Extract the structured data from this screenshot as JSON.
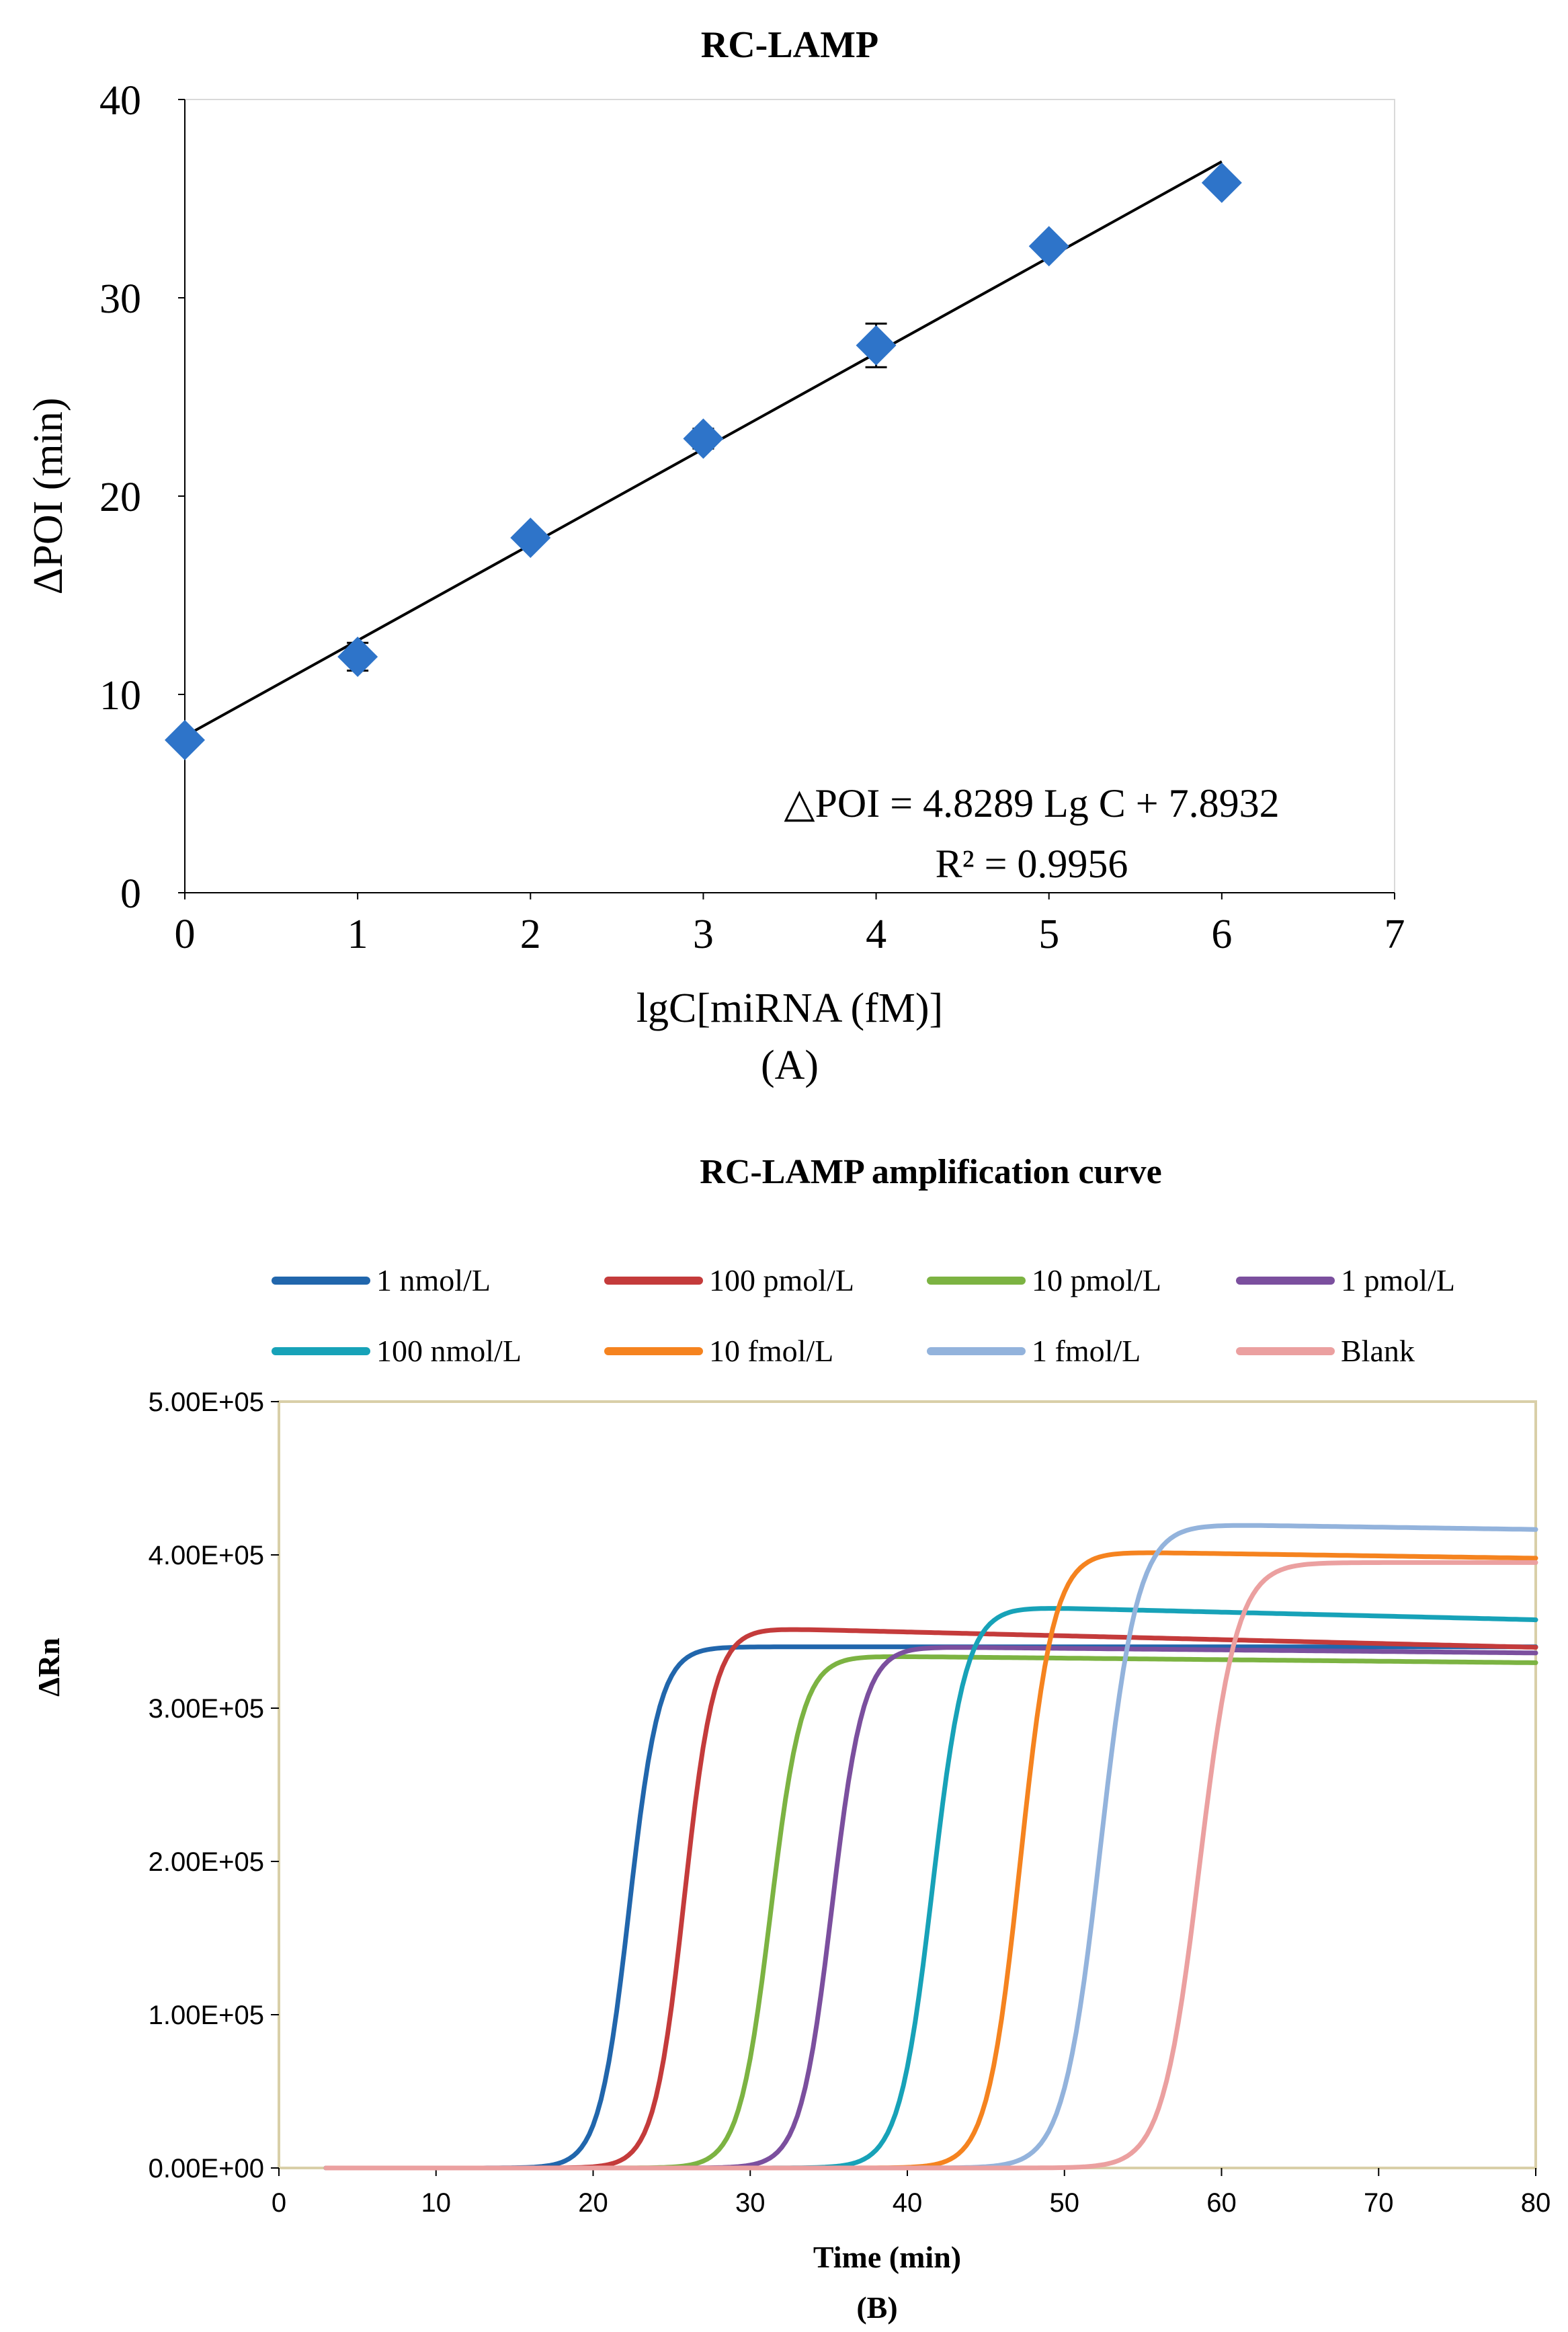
{
  "chart_data": [
    {
      "panel": "A",
      "type": "scatter",
      "title": "RC-LAMP",
      "xlabel": "lgC[miRNA (fM)]",
      "ylabel": "ΔPOI (min)",
      "caption": "(A)",
      "xlim": [
        0,
        7
      ],
      "ylim": [
        0,
        40
      ],
      "xticks": [
        0,
        1,
        2,
        3,
        4,
        5,
        6,
        7
      ],
      "yticks": [
        0,
        10,
        20,
        30,
        40
      ],
      "grid": false,
      "marker_color": "#2E74C9",
      "points": [
        {
          "x": 0,
          "y": 7.7,
          "err": 0.3
        },
        {
          "x": 1,
          "y": 11.9,
          "err": 0.7
        },
        {
          "x": 2,
          "y": 17.9,
          "err": 0.4
        },
        {
          "x": 3,
          "y": 22.9,
          "err": 0.5
        },
        {
          "x": 4,
          "y": 27.6,
          "err": 1.1
        },
        {
          "x": 5,
          "y": 32.6,
          "err": 0.4
        },
        {
          "x": 6,
          "y": 35.8,
          "err": 0.3
        }
      ],
      "fit": {
        "slope": 4.8289,
        "intercept": 7.8932,
        "x_range": [
          0,
          6
        ]
      },
      "equation": "△POI = 4.8289 Lg C + 7.8932",
      "r_squared": "R² = 0.9956"
    },
    {
      "panel": "B",
      "type": "line",
      "title": "RC-LAMP  amplification  curve",
      "xlabel": "Time (min)",
      "ylabel": "ΔRn",
      "caption": "(B)",
      "xlim": [
        0,
        80
      ],
      "ylim": [
        0,
        500000
      ],
      "xticks": [
        0,
        10,
        20,
        30,
        40,
        50,
        60,
        70,
        80
      ],
      "yticks": [
        0,
        100000,
        200000,
        300000,
        400000,
        500000
      ],
      "ytick_labels": [
        "0.00E+00",
        "1.00E+05",
        "2.00E+05",
        "3.00E+05",
        "4.00E+05",
        "5.00E+05"
      ],
      "legend_position": "top",
      "grid": false,
      "frame_color": "#D9CFA8",
      "series": [
        {
          "name": "1 nmol/L",
          "color": "#2166AC",
          "midpoint": 22.3,
          "steep": 1.05,
          "plateau": 340000,
          "drift": 0
        },
        {
          "name": "100 pmol/L",
          "color": "#C43B3B",
          "midpoint": 25.8,
          "steep": 1.05,
          "plateau": 352000,
          "drift": -250
        },
        {
          "name": "10 pmol/L",
          "color": "#7CB342",
          "midpoint": 31.3,
          "steep": 1.0,
          "plateau": 334000,
          "drift": -100
        },
        {
          "name": "1 pmol/L",
          "color": "#7B4F9E",
          "midpoint": 35.2,
          "steep": 1.0,
          "plateau": 340000,
          "drift": -100
        },
        {
          "name": "100 nmol/L",
          "color": "#17A2B8",
          "midpoint": 41.6,
          "steep": 0.95,
          "plateau": 366000,
          "drift": -250
        },
        {
          "name": "10 fmol/L",
          "color": "#F5831F",
          "midpoint": 47.2,
          "steep": 0.95,
          "plateau": 402000,
          "drift": -150
        },
        {
          "name": "1 fmol/L",
          "color": "#93B3DC",
          "midpoint": 52.3,
          "steep": 0.85,
          "plateau": 420000,
          "drift": -150
        },
        {
          "name": "Blank",
          "color": "#EBA0A0",
          "midpoint": 58.6,
          "steep": 0.85,
          "plateau": 395000,
          "drift": 0
        }
      ]
    }
  ]
}
